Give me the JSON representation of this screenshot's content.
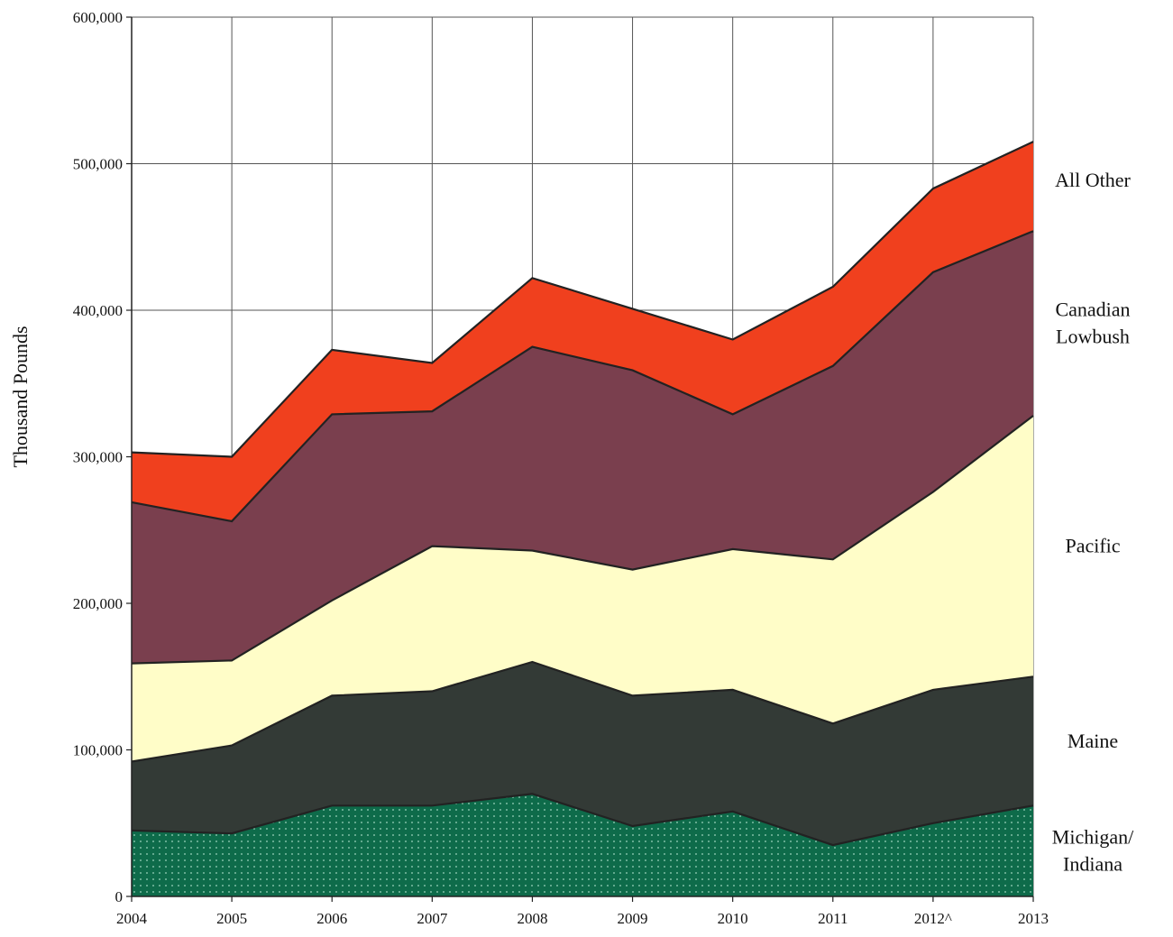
{
  "chart_data": {
    "type": "area",
    "stacked": true,
    "x": [
      "2004",
      "2005",
      "2006",
      "2007",
      "2008",
      "2009",
      "2010",
      "2011",
      "2012^",
      "2013"
    ],
    "ylabel": "Thousand Pounds",
    "ylim": [
      0,
      600000
    ],
    "yticks": [
      "0",
      "100,000",
      "200,000",
      "300,000",
      "400,000",
      "500,000",
      "600,000"
    ],
    "grid": true,
    "legend": "right",
    "series": [
      {
        "name": "Michigan/ Indiana",
        "color": "#0e6b4a",
        "pattern": "dotted",
        "values": [
          45000,
          43000,
          62000,
          62000,
          70000,
          48000,
          58000,
          35000,
          50000,
          62000
        ]
      },
      {
        "name": "Maine",
        "color": "#333a36",
        "values": [
          47000,
          60000,
          75000,
          78000,
          90000,
          89000,
          83000,
          83000,
          91000,
          88000
        ]
      },
      {
        "name": "Pacific",
        "color": "#fffdc8",
        "values": [
          67000,
          58000,
          65000,
          99000,
          76000,
          86000,
          96000,
          112000,
          135000,
          178000
        ]
      },
      {
        "name": "Canadian Lowbush",
        "color": "#7a3f4e",
        "values": [
          110000,
          95000,
          127000,
          92000,
          139000,
          136000,
          92000,
          132000,
          150000,
          126000
        ]
      },
      {
        "name": "All Other",
        "color": "#f0401e",
        "values": [
          34000,
          44000,
          44000,
          33000,
          47000,
          42000,
          51000,
          54000,
          57000,
          61000
        ]
      }
    ]
  }
}
